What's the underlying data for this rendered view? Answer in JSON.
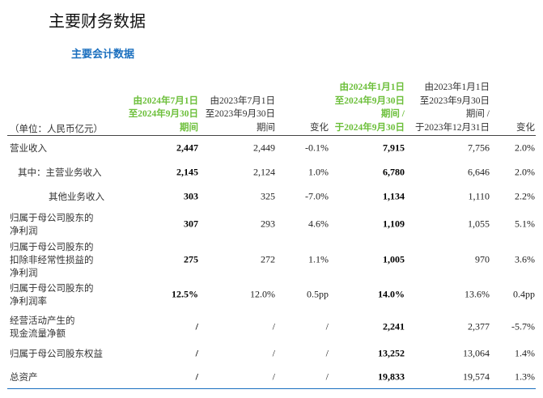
{
  "title": "主要财务数据",
  "subtitle": "主要会计数据",
  "unit": "（单位：人民币亿元）",
  "columns": [
    {
      "lines": [
        "由2024年7月1日",
        "至2024年9月30日",
        "期间"
      ],
      "highlight": true
    },
    {
      "lines": [
        "由2023年7月1日",
        "至2023年9月30日",
        "期间"
      ],
      "highlight": false
    },
    {
      "lines": [
        "变化"
      ],
      "highlight": false
    },
    {
      "lines": [
        "由2024年1月1日",
        "至2024年9月30日",
        "期间 /",
        "于2024年9月30日"
      ],
      "highlight": true
    },
    {
      "lines": [
        "由2023年1月1日",
        "至2023年9月30日",
        "期间 /",
        "于2023年12月31日"
      ],
      "highlight": false
    },
    {
      "lines": [
        "变化"
      ],
      "highlight": false
    }
  ],
  "rows": [
    {
      "label": [
        "营业收入"
      ],
      "values": [
        "2,447",
        "2,449",
        "-0.1%",
        "7,915",
        "7,756",
        "2.0%"
      ]
    },
    {
      "label": [
        "其中：主营业务收入"
      ],
      "values": [
        "2,145",
        "2,124",
        "1.0%",
        "6,780",
        "6,646",
        "2.0%"
      ],
      "indent": 1
    },
    {
      "label": [
        "其他业务收入"
      ],
      "values": [
        "303",
        "325",
        "-7.0%",
        "1,134",
        "1,110",
        "2.2%"
      ],
      "indent": 2
    },
    {
      "label": [
        "归属于母公司股东的",
        "净利润"
      ],
      "values": [
        "307",
        "293",
        "4.6%",
        "1,109",
        "1,055",
        "5.1%"
      ]
    },
    {
      "label": [
        "归属于母公司股东的",
        "扣除非经常性损益的",
        "净利润"
      ],
      "values": [
        "275",
        "272",
        "1.1%",
        "1,005",
        "970",
        "3.6%"
      ]
    },
    {
      "label": [
        "归属于母公司股东的",
        "净利润率"
      ],
      "values": [
        "12.5%",
        "12.0%",
        "0.5pp",
        "14.0%",
        "13.6%",
        "0.4pp"
      ]
    },
    {
      "label": [
        "经营活动产生的",
        "现金流量净额"
      ],
      "values": [
        "/",
        "/",
        "/",
        "2,241",
        "2,377",
        "-5.7%"
      ]
    },
    {
      "label": [
        "归属于母公司股东权益"
      ],
      "values": [
        "/",
        "/",
        "/",
        "13,252",
        "13,064",
        "1.4%"
      ]
    },
    {
      "label": [
        "总资产"
      ],
      "values": [
        "/",
        "/",
        "/",
        "19,833",
        "19,574",
        "1.3%"
      ]
    }
  ],
  "colors": {
    "highlight": "#6cbf3a",
    "accent": "#1a6fbf"
  }
}
